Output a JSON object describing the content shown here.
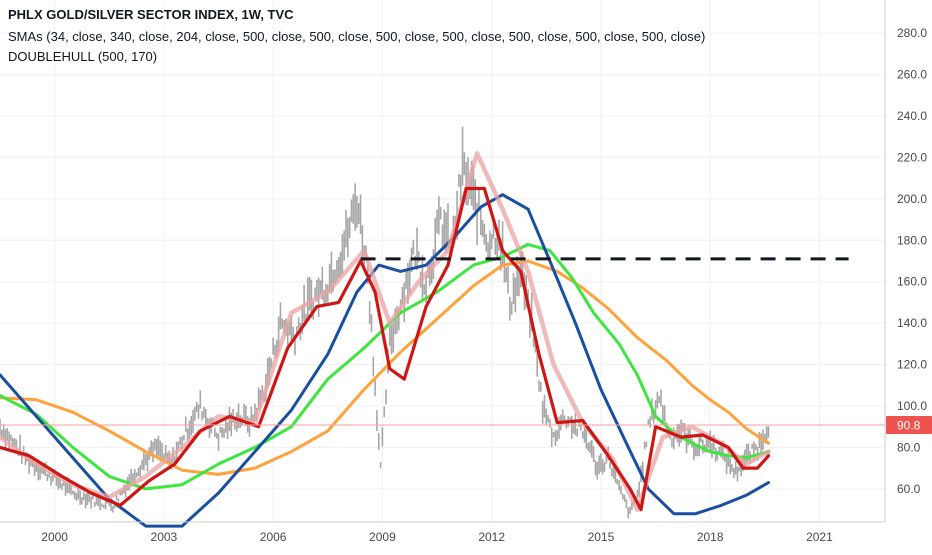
{
  "legend": {
    "title": "PHLX GOLD/SILVER SECTOR INDEX, 1W, TVC",
    "smas": "SMAs (34, close, 340, close, 204, close, 500, close, 500, close, 500, close, 500, close, 500, close, 500, close, 500, close)",
    "hull": "DOUBLEHULL (500, 170)"
  },
  "price_badge": "90.8",
  "colors": {
    "price_bars": "#8a8a8a",
    "sma34": "#e8a3a3",
    "hull": "#d01515",
    "sma340": "#1a4fa0",
    "sma204": "#3de63d",
    "sma500": "#ffa23c",
    "resistance": "#131722",
    "price_line": "#f2a0a0",
    "badge": "#ef5350"
  },
  "chart_data": {
    "type": "line",
    "x_ticks": [
      "2000",
      "2003",
      "2006",
      "2009",
      "2012",
      "2015",
      "2018",
      "2021"
    ],
    "y_ticks": [
      "60.0",
      "80.0",
      "100.0",
      "120.0",
      "140.0",
      "160.0",
      "180.0",
      "200.0",
      "220.0",
      "240.0",
      "260.0",
      "280.0"
    ],
    "ylim": [
      44,
      296
    ],
    "xlim": [
      1998.5,
      2022.8
    ],
    "last_price": 90.8,
    "resistance": {
      "x": [
        2008.4,
        2021.8
      ],
      "y": 171
    },
    "series": [
      {
        "key": "price",
        "x": [
          1998.5,
          1999.2,
          2000,
          2000.5,
          2001,
          2001.6,
          2002.2,
          2002.8,
          2003.2,
          2003.6,
          2004,
          2004.5,
          2005,
          2005.4,
          2005.8,
          2006.2,
          2006.6,
          2007,
          2007.5,
          2008,
          2008.3,
          2008.6,
          2008.8,
          2008.95,
          2009.2,
          2009.5,
          2009.9,
          2010.2,
          2010.6,
          2010.9,
          2011.2,
          2011.5,
          2011.9,
          2012.2,
          2012.5,
          2012.8,
          2013.1,
          2013.4,
          2013.7,
          2014,
          2014.3,
          2014.6,
          2014.9,
          2015.2,
          2015.5,
          2015.8,
          2016.05,
          2016.3,
          2016.6,
          2016.9,
          2017.2,
          2017.6,
          2018,
          2018.4,
          2018.7,
          2019,
          2019.3,
          2019.6
        ],
        "y": [
          90,
          75,
          65,
          58,
          55,
          52,
          68,
          80,
          72,
          88,
          100,
          85,
          95,
          92,
          110,
          140,
          135,
          150,
          160,
          180,
          200,
          165,
          110,
          70,
          130,
          150,
          175,
          160,
          190,
          175,
          215,
          200,
          180,
          185,
          150,
          165,
          140,
          100,
          85,
          95,
          90,
          85,
          70,
          75,
          60,
          48,
          60,
          90,
          105,
          85,
          88,
          80,
          82,
          75,
          68,
          75,
          80,
          91
        ]
      },
      {
        "key": "sma34",
        "x": [
          1998.5,
          1999.5,
          2000.5,
          2001.5,
          2002.5,
          2003.5,
          2004.5,
          2005.5,
          2006.5,
          2007.5,
          2008.5,
          2009.2,
          2010,
          2010.8,
          2011.6,
          2012.3,
          2013,
          2013.7,
          2014.5,
          2015.3,
          2016,
          2016.7,
          2017.5,
          2018.3,
          2019,
          2019.6
        ],
        "y": [
          85,
          72,
          62,
          56,
          66,
          80,
          95,
          92,
          145,
          155,
          175,
          140,
          160,
          175,
          222,
          195,
          165,
          120,
          92,
          75,
          50,
          85,
          90,
          82,
          72,
          78
        ]
      },
      {
        "key": "hull",
        "x": [
          1998.5,
          1999.3,
          2000.2,
          2001,
          2001.8,
          2002.6,
          2003.3,
          2004,
          2004.8,
          2005.6,
          2006.4,
          2007.2,
          2007.8,
          2008.4,
          2008.8,
          2009.2,
          2009.6,
          2010.2,
          2010.8,
          2011.3,
          2011.8,
          2012.3,
          2012.8,
          2013.3,
          2013.8,
          2014.5,
          2015.2,
          2015.8,
          2016.1,
          2016.5,
          2017.2,
          2017.8,
          2018.5,
          2018.9,
          2019.3,
          2019.6
        ],
        "y": [
          80,
          76,
          66,
          58,
          52,
          64,
          72,
          88,
          95,
          90,
          128,
          148,
          150,
          170,
          155,
          118,
          113,
          148,
          168,
          205,
          205,
          175,
          165,
          125,
          92,
          93,
          76,
          60,
          50,
          90,
          85,
          86,
          80,
          70,
          70,
          76
        ]
      },
      {
        "key": "sma340",
        "x": [
          1998.5,
          1999.5,
          2000.5,
          2001.5,
          2002.5,
          2003.5,
          2004.5,
          2005.5,
          2006.5,
          2007.5,
          2008.3,
          2008.9,
          2009.5,
          2010.2,
          2011,
          2011.7,
          2012.3,
          2013,
          2013.6,
          2014.3,
          2015,
          2015.7,
          2016.3,
          2017,
          2017.6,
          2018.3,
          2019,
          2019.6
        ],
        "y": [
          115,
          95,
          75,
          55,
          42,
          42,
          58,
          78,
          98,
          125,
          155,
          168,
          165,
          168,
          182,
          196,
          202,
          195,
          170,
          140,
          108,
          82,
          60,
          48,
          48,
          52,
          57,
          63
        ]
      },
      {
        "key": "sma204",
        "x": [
          1998.5,
          1999.5,
          2000.5,
          2001.5,
          2002.5,
          2003.5,
          2004.5,
          2005.5,
          2006.5,
          2007.5,
          2008.5,
          2009.5,
          2010.5,
          2011.5,
          2012.3,
          2013,
          2013.6,
          2014.2,
          2014.8,
          2015.5,
          2016,
          2016.5,
          2017,
          2017.5,
          2018,
          2018.5,
          2019,
          2019.6
        ],
        "y": [
          105,
          96,
          80,
          66,
          60,
          62,
          72,
          80,
          90,
          113,
          128,
          145,
          155,
          168,
          172,
          178,
          175,
          162,
          145,
          130,
          115,
          95,
          87,
          82,
          78,
          76,
          75,
          78
        ]
      },
      {
        "key": "sma500",
        "x": [
          1998.5,
          1999.5,
          2000.5,
          2001.5,
          2002.5,
          2003.5,
          2004.5,
          2005.5,
          2006.5,
          2007.5,
          2008.5,
          2009.5,
          2010.5,
          2011.5,
          2012.3,
          2013,
          2013.8,
          2014.5,
          2015.2,
          2016,
          2016.8,
          2017.5,
          2018,
          2018.5,
          2019,
          2019.6
        ],
        "y": [
          104,
          103,
          97,
          88,
          78,
          69,
          67,
          70,
          78,
          88,
          108,
          126,
          142,
          158,
          168,
          170,
          165,
          157,
          147,
          133,
          122,
          110,
          103,
          97,
          89,
          82
        ]
      }
    ]
  }
}
